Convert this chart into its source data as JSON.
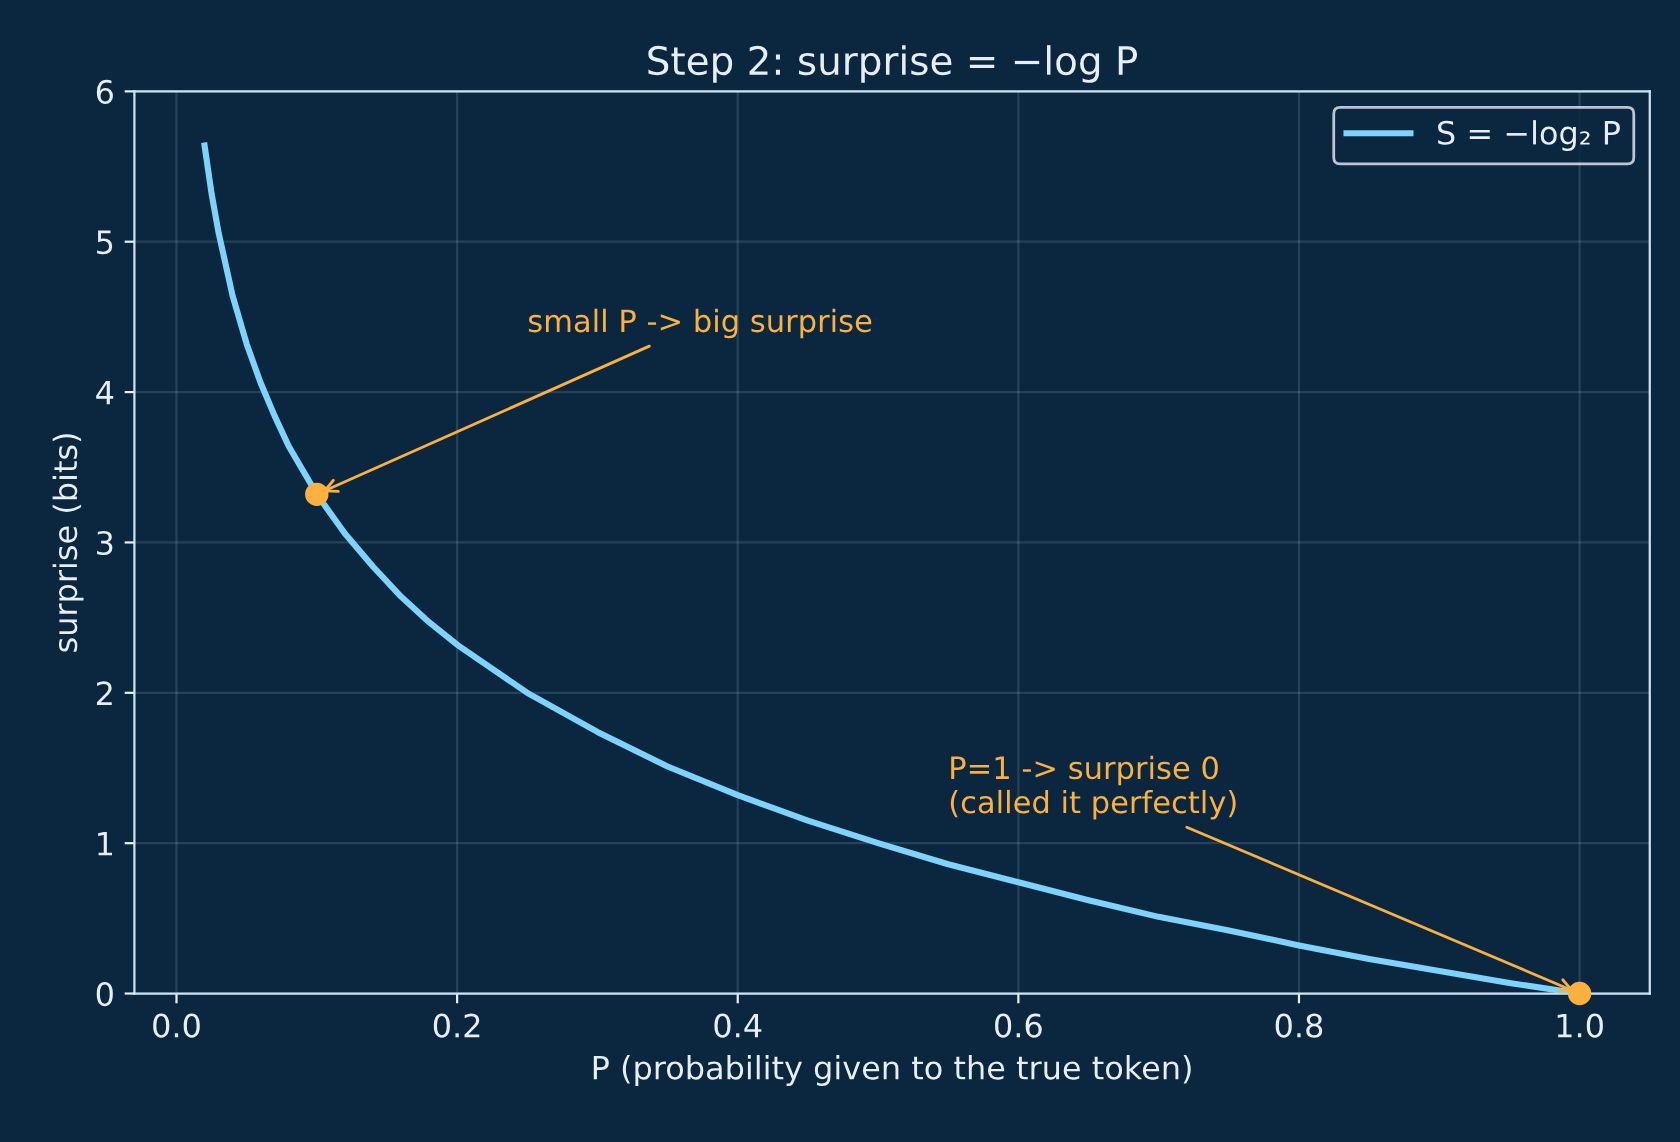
{
  "chart_data": {
    "type": "line",
    "title": "Step 2: surprise = −log P",
    "xlabel": "P (probability given to the true token)",
    "ylabel": "surprise (bits)",
    "series": [
      {
        "name": "S = −log₂ P",
        "color": "#7dd3fc",
        "x": [
          0.02,
          0.025,
          0.03,
          0.04,
          0.05,
          0.06,
          0.07,
          0.08,
          0.1,
          0.12,
          0.14,
          0.16,
          0.18,
          0.2,
          0.25,
          0.3,
          0.35,
          0.4,
          0.45,
          0.5,
          0.55,
          0.6,
          0.65,
          0.7,
          0.75,
          0.8,
          0.85,
          0.9,
          0.95,
          1.0
        ],
        "values": [
          5.64,
          5.32,
          5.06,
          4.64,
          4.32,
          4.06,
          3.84,
          3.64,
          3.32,
          3.06,
          2.84,
          2.64,
          2.47,
          2.32,
          2.0,
          1.74,
          1.51,
          1.32,
          1.15,
          1.0,
          0.86,
          0.74,
          0.62,
          0.51,
          0.42,
          0.32,
          0.23,
          0.15,
          0.07,
          0.0
        ]
      },
      {
        "color": "#fbb040",
        "type": "scatter",
        "x": [
          0.1,
          1.0
        ],
        "values": [
          3.32,
          0.0
        ]
      }
    ],
    "annotations": [
      {
        "text": "small P -> big surprise",
        "x": 0.1,
        "y": 3.32
      },
      {
        "text": "P=1 -> surprise 0\n(called it perfectly)",
        "x": 1.0,
        "y": 0.0
      }
    ],
    "xlim": [
      -0.03,
      1.05
    ],
    "ylim": [
      0,
      6
    ],
    "xticks": [
      {
        "value": 0,
        "label": "0.0"
      },
      0.2,
      0.4,
      0.6,
      0.8,
      {
        "value": 1,
        "label": "1.0"
      }
    ],
    "yticks": [
      0,
      1,
      2,
      3,
      4,
      5,
      6
    ],
    "grid": true,
    "legend": "top right"
  }
}
